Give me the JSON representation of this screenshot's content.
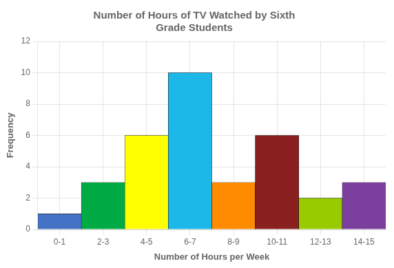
{
  "chart_data": {
    "type": "bar",
    "title": "Number of Hours of TV Watched by Sixth\nGrade Students",
    "xlabel": "Number of Hours per Week",
    "ylabel": "Frequency",
    "categories": [
      "0-1",
      "2-3",
      "4-5",
      "6-7",
      "8-9",
      "10-11",
      "12-13",
      "14-15"
    ],
    "values": [
      1,
      3,
      6,
      10,
      3,
      6,
      2,
      3
    ],
    "colors": [
      "#4472C4",
      "#00AA44",
      "#FFFF00",
      "#1BB8E8",
      "#FF8C00",
      "#8B2020",
      "#99CC00",
      "#7B3F9E"
    ],
    "ylim": [
      0,
      12
    ],
    "yticks": [
      0,
      2,
      4,
      6,
      8,
      10,
      12
    ],
    "grid": true
  }
}
